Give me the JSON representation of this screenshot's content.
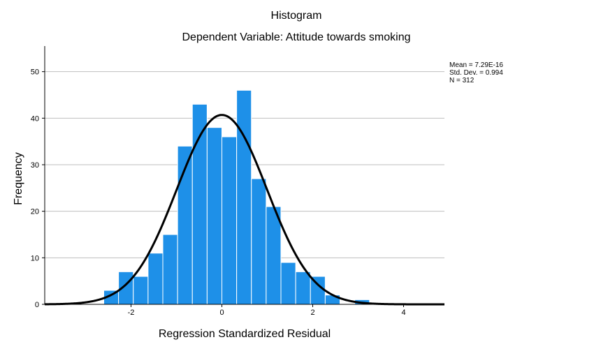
{
  "chart_data": {
    "type": "bar",
    "title": "Histogram",
    "subtitle": "Dependent Variable: Attitude towards smoking",
    "xlabel": "Regression Standardized Residual",
    "ylabel": "Frequency",
    "xlim": [
      -3.9,
      4.9
    ],
    "ylim": [
      0,
      55.5
    ],
    "xticks": [
      -2,
      0,
      2,
      4
    ],
    "yticks": [
      0,
      10,
      20,
      30,
      40,
      50
    ],
    "bin_width": 0.325,
    "bins": [
      {
        "start": -2.6,
        "count": 3
      },
      {
        "start": -2.275,
        "count": 7
      },
      {
        "start": -1.95,
        "count": 6
      },
      {
        "start": -1.625,
        "count": 11
      },
      {
        "start": -1.3,
        "count": 15
      },
      {
        "start": -0.975,
        "count": 34
      },
      {
        "start": -0.65,
        "count": 43
      },
      {
        "start": -0.325,
        "count": 38
      },
      {
        "start": 0.0,
        "count": 36
      },
      {
        "start": 0.325,
        "count": 46
      },
      {
        "start": 0.65,
        "count": 27
      },
      {
        "start": 0.975,
        "count": 21
      },
      {
        "start": 1.3,
        "count": 9
      },
      {
        "start": 1.625,
        "count": 7
      },
      {
        "start": 1.95,
        "count": 6
      },
      {
        "start": 2.275,
        "count": 2
      },
      {
        "start": 2.6,
        "count": 0
      },
      {
        "start": 2.925,
        "count": 1
      }
    ],
    "normal_curve": {
      "mean": 0,
      "sd": 0.994,
      "n": 312
    },
    "stats": {
      "mean": "Mean = 7.29E-16",
      "std_dev": "Std. Dev. = 0.994",
      "n": "N = 312"
    },
    "grid": true,
    "legend_position": "top-right",
    "colors": {
      "bar_fill": "#1e90e8",
      "bar_stroke": "#ffffff",
      "curve": "#000000",
      "grid": "#bebebe",
      "axis": "#000000"
    }
  }
}
